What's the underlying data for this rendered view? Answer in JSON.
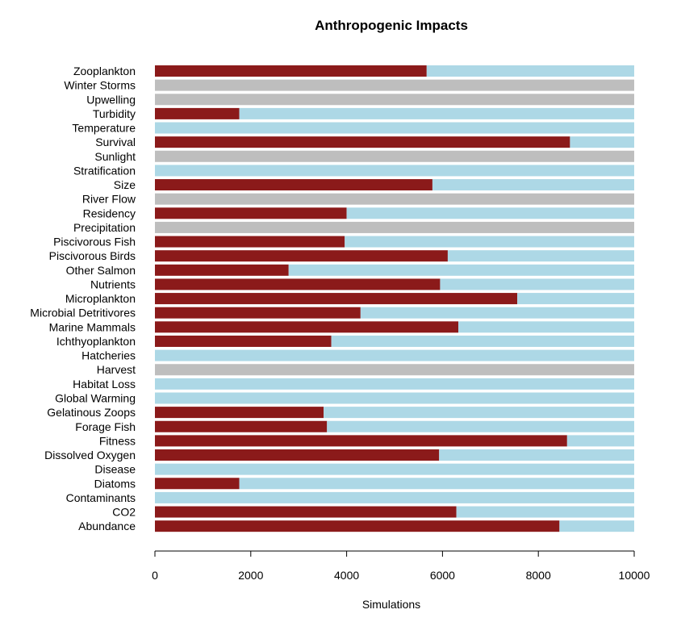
{
  "chart_data": {
    "type": "bar",
    "orientation": "horizontal",
    "stacked": true,
    "title": "Anthropogenic Impacts",
    "xlabel": "Simulations",
    "ylabel": "",
    "xlim": [
      0,
      10000
    ],
    "xticks": [
      0,
      2000,
      4000,
      6000,
      8000,
      10000
    ],
    "tick_labels": [
      "0",
      "2000",
      "4000",
      "6000",
      "8000",
      "10000"
    ],
    "grid": false,
    "legend": "none",
    "colors": {
      "primary": "#8B1A1A",
      "secondary": "#ADD8E6",
      "neutral": "#BEBEBE"
    },
    "categories": [
      "Zooplankton",
      "Winter Storms",
      "Upwelling",
      "Turbidity",
      "Temperature",
      "Survival",
      "Sunlight",
      "Stratification",
      "Size",
      "River Flow",
      "Residency",
      "Precipitation",
      "Piscivorous Fish",
      "Piscivorous Birds",
      "Other Salmon",
      "Nutrients",
      "Microplankton",
      "Microbial Detritivores",
      "Marine Mammals",
      "Ichthyoplankton",
      "Hatcheries",
      "Harvest",
      "Habitat Loss",
      "Global Warming",
      "Gelatinous Zoops",
      "Forage Fish",
      "Fitness",
      "Dissolved Oxygen",
      "Disease",
      "Diatoms",
      "Contaminants",
      "CO2",
      "Abundance"
    ],
    "series": [
      {
        "color": "#8B1A1A",
        "values": [
          5670,
          0,
          0,
          1760,
          0,
          8660,
          0,
          0,
          5790,
          0,
          4000,
          0,
          3960,
          6110,
          2790,
          5950,
          7560,
          4290,
          6330,
          3680,
          0,
          0,
          0,
          0,
          3520,
          3590,
          8600,
          5930,
          0,
          1760,
          0,
          6290,
          8440
        ]
      },
      {
        "color": "#ADD8E6",
        "values": [
          4330,
          0,
          0,
          8240,
          10000,
          1340,
          0,
          10000,
          4210,
          0,
          6000,
          0,
          6040,
          3890,
          7210,
          4050,
          2440,
          5710,
          3670,
          6320,
          10000,
          0,
          10000,
          10000,
          6480,
          6410,
          1400,
          4070,
          10000,
          8240,
          10000,
          3710,
          1560
        ]
      },
      {
        "color": "#BEBEBE",
        "values": [
          0,
          10000,
          10000,
          0,
          0,
          0,
          10000,
          0,
          0,
          10000,
          0,
          10000,
          0,
          0,
          0,
          0,
          0,
          0,
          0,
          0,
          0,
          10000,
          0,
          0,
          0,
          0,
          0,
          0,
          0,
          0,
          0,
          0,
          0
        ]
      }
    ]
  }
}
